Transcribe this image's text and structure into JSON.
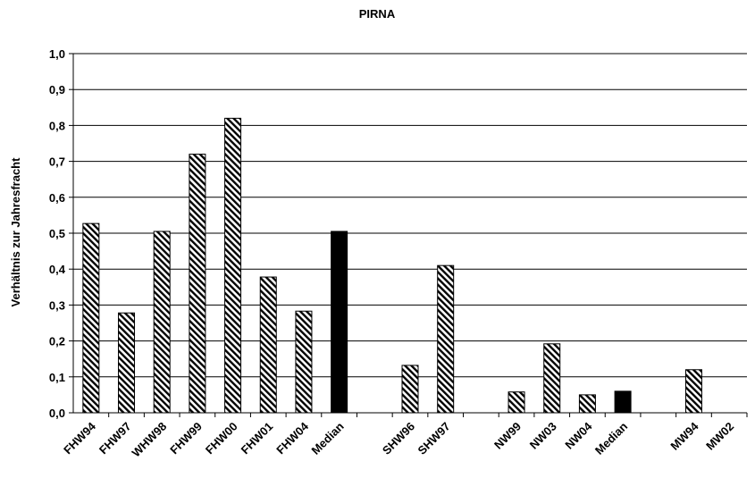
{
  "chart_data": {
    "type": "bar",
    "title": "PIRNA",
    "xlabel": "",
    "ylabel": "Verhältnis zur Jahresfracht",
    "ylim": [
      0,
      1.0
    ],
    "yticks": [
      "0,0",
      "0,1",
      "0,2",
      "0,3",
      "0,4",
      "0,5",
      "0,6",
      "0,7",
      "0,8",
      "0,9",
      "1,0"
    ],
    "grid": true,
    "legend": "none",
    "categories": [
      "FHW94",
      "FHW97",
      "WHW98",
      "FHW99",
      "FHW00",
      "FHW01",
      "FHW04",
      "Median",
      "",
      "SHW96",
      "SHW97",
      "",
      "NW99",
      "NW03",
      "NW04",
      "Median",
      "",
      "MW94",
      "MW02"
    ],
    "values": [
      0.527,
      0.278,
      0.505,
      0.72,
      0.82,
      0.378,
      0.283,
      0.505,
      null,
      0.132,
      0.41,
      null,
      0.058,
      0.192,
      0.05,
      0.06,
      null,
      0.12,
      null
    ],
    "fill": [
      "hatched",
      "hatched",
      "hatched",
      "hatched",
      "hatched",
      "hatched",
      "hatched",
      "solid",
      null,
      "hatched",
      "hatched",
      null,
      "hatched",
      "hatched",
      "hatched",
      "solid",
      null,
      "hatched",
      null
    ],
    "colors": {
      "hatched_stripe": "#000000",
      "hatched_bg": "#ffffff",
      "solid": "#000000",
      "grid": "#000000"
    }
  }
}
